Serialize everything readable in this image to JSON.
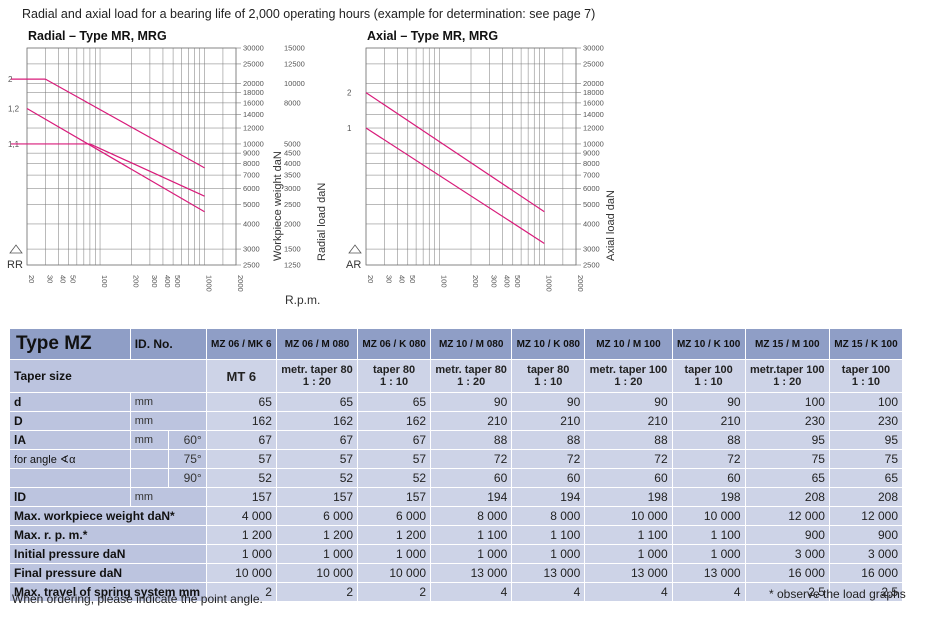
{
  "intro": "Radial and axial load for a bearing life of 2,000 operating hours (example for determination: see page 7)",
  "rpm_label": "R.p.m.",
  "x_ticks": [
    "20",
    "30",
    "40",
    "50",
    "100",
    "200",
    "300",
    "400",
    "500",
    "1000",
    "2000"
  ],
  "chart_data": [
    {
      "type": "line",
      "title": "Radial – Type MR, MRG",
      "xlabel": "",
      "ylabel": "Radial load daN",
      "ylabel2": "Workpiece weight daN",
      "corner_label": "RR",
      "log_scale": true,
      "ylim": [
        2500,
        30000
      ],
      "y_ticks": [
        "30000",
        "25000",
        "20000",
        "18000",
        "16000",
        "14000",
        "12000",
        "10000",
        "9000",
        "8000",
        "7000",
        "6000",
        "5000",
        "4000",
        "3000",
        "2500"
      ],
      "y2_ticks": [
        "15000",
        "12500",
        "10000",
        "8000",
        "5000",
        "4500",
        "4000",
        "3500",
        "3000",
        "2500",
        "2000",
        "1500",
        "1250"
      ],
      "y2_tick_values": [
        30000,
        25000,
        20000,
        16000,
        10000,
        9000,
        8000,
        7000,
        6000,
        5000,
        4000,
        3000,
        2500
      ],
      "factor_ticks": [
        "2",
        "1,2",
        "1,1"
      ],
      "factor_tick_values": [
        21000,
        15000,
        10000
      ],
      "series": [
        {
          "x": [
            30,
            1000
          ],
          "y": [
            21000,
            7600
          ],
          "flat_from": 20
        },
        {
          "x": [
            20,
            1000
          ],
          "y": [
            15000,
            4600
          ]
        },
        {
          "x": [
            80,
            1000
          ],
          "y": [
            10000,
            5500
          ],
          "flat_from": 20
        }
      ],
      "grid": true
    },
    {
      "type": "line",
      "title": "Axial – Type MR, MRG",
      "xlabel": "",
      "ylabel": "Axial load daN",
      "corner_label": "AR",
      "log_scale": true,
      "ylim": [
        2500,
        30000
      ],
      "y_ticks": [
        "30000",
        "25000",
        "20000",
        "18000",
        "16000",
        "14000",
        "12000",
        "10000",
        "9000",
        "8000",
        "7000",
        "6000",
        "5000",
        "4000",
        "3000",
        "2500"
      ],
      "factor_ticks": [
        "2",
        "1"
      ],
      "factor_tick_values": [
        18000,
        12000
      ],
      "series": [
        {
          "x": [
            20,
            1000
          ],
          "y": [
            18000,
            4600
          ]
        },
        {
          "x": [
            20,
            1000
          ],
          "y": [
            12000,
            3200
          ]
        }
      ],
      "grid": true
    }
  ],
  "table": {
    "type_label": "Type MZ",
    "id_label": "ID. No.",
    "columns": [
      "MZ 06 / MK 6",
      "MZ 06 / M 080",
      "MZ 06 / K 080",
      "MZ 10 / M 080",
      "MZ 10 / K 080",
      "MZ 10 / M 100",
      "MZ 10 / K 100",
      "MZ 15 / M 100",
      "MZ 15 / K 100"
    ],
    "taper_label": "Taper size",
    "taper": [
      [
        "MT 6",
        ""
      ],
      [
        "metr. taper 80",
        "1 : 20"
      ],
      [
        "taper 80",
        "1 : 10"
      ],
      [
        "metr. taper 80",
        "1 : 20"
      ],
      [
        "taper 80",
        "1 : 10"
      ],
      [
        "metr. taper 100",
        "1 : 20"
      ],
      [
        "taper 100",
        "1 : 10"
      ],
      [
        "metr.taper 100",
        "1 : 20"
      ],
      [
        "taper 100",
        "1 : 10"
      ]
    ],
    "rows": [
      {
        "label": "d",
        "unit": "mm",
        "values": [
          "65",
          "65",
          "65",
          "90",
          "90",
          "90",
          "90",
          "100",
          "100"
        ]
      },
      {
        "label": "D",
        "unit": "mm",
        "values": [
          "162",
          "162",
          "162",
          "210",
          "210",
          "210",
          "210",
          "230",
          "230"
        ]
      },
      {
        "label": "lA",
        "unit": "mm",
        "angle": "60°",
        "values": [
          "67",
          "67",
          "67",
          "88",
          "88",
          "88",
          "88",
          "95",
          "95"
        ]
      },
      {
        "label": "for angle ∢α",
        "unit": "",
        "angle": "75°",
        "values": [
          "57",
          "57",
          "57",
          "72",
          "72",
          "72",
          "72",
          "75",
          "75"
        ]
      },
      {
        "label": "",
        "unit": "",
        "angle": "90°",
        "values": [
          "52",
          "52",
          "52",
          "60",
          "60",
          "60",
          "60",
          "65",
          "65"
        ]
      },
      {
        "label": "lD",
        "unit": "mm",
        "values": [
          "157",
          "157",
          "157",
          "194",
          "194",
          "198",
          "198",
          "208",
          "208"
        ]
      },
      {
        "label": "Max. workpiece weight daN*",
        "unit": "",
        "values": [
          "4 000",
          "6 000",
          "6 000",
          "8 000",
          "8 000",
          "10 000",
          "10 000",
          "12 000",
          "12 000"
        ]
      },
      {
        "label": "Max. r. p. m.*",
        "unit": "",
        "values": [
          "1 200",
          "1 200",
          "1 200",
          "1 100",
          "1 100",
          "1 100",
          "1 100",
          "900",
          "900"
        ]
      },
      {
        "label": "Initial pressure daN",
        "unit": "",
        "values": [
          "1 000",
          "1 000",
          "1 000",
          "1 000",
          "1 000",
          "1 000",
          "1 000",
          "3 000",
          "3 000"
        ]
      },
      {
        "label": "Final pressure daN",
        "unit": "",
        "values": [
          "10 000",
          "10 000",
          "10 000",
          "13 000",
          "13 000",
          "13 000",
          "13 000",
          "16 000",
          "16 000"
        ]
      },
      {
        "label": "Max. travel of spring system mm",
        "unit": "",
        "values": [
          "2",
          "2",
          "2",
          "4",
          "4",
          "4",
          "4",
          "2,5",
          "2,5"
        ]
      }
    ]
  },
  "note_left": "When ordering, please indicate the point angle.",
  "note_right": "* observe the load graphs",
  "colors": {
    "curve": "#d81b7a",
    "grid": "#777777",
    "header_bg": "#8f9ec6",
    "row_bg": "#cdd3e7",
    "label_bg": "#bcc4df"
  }
}
